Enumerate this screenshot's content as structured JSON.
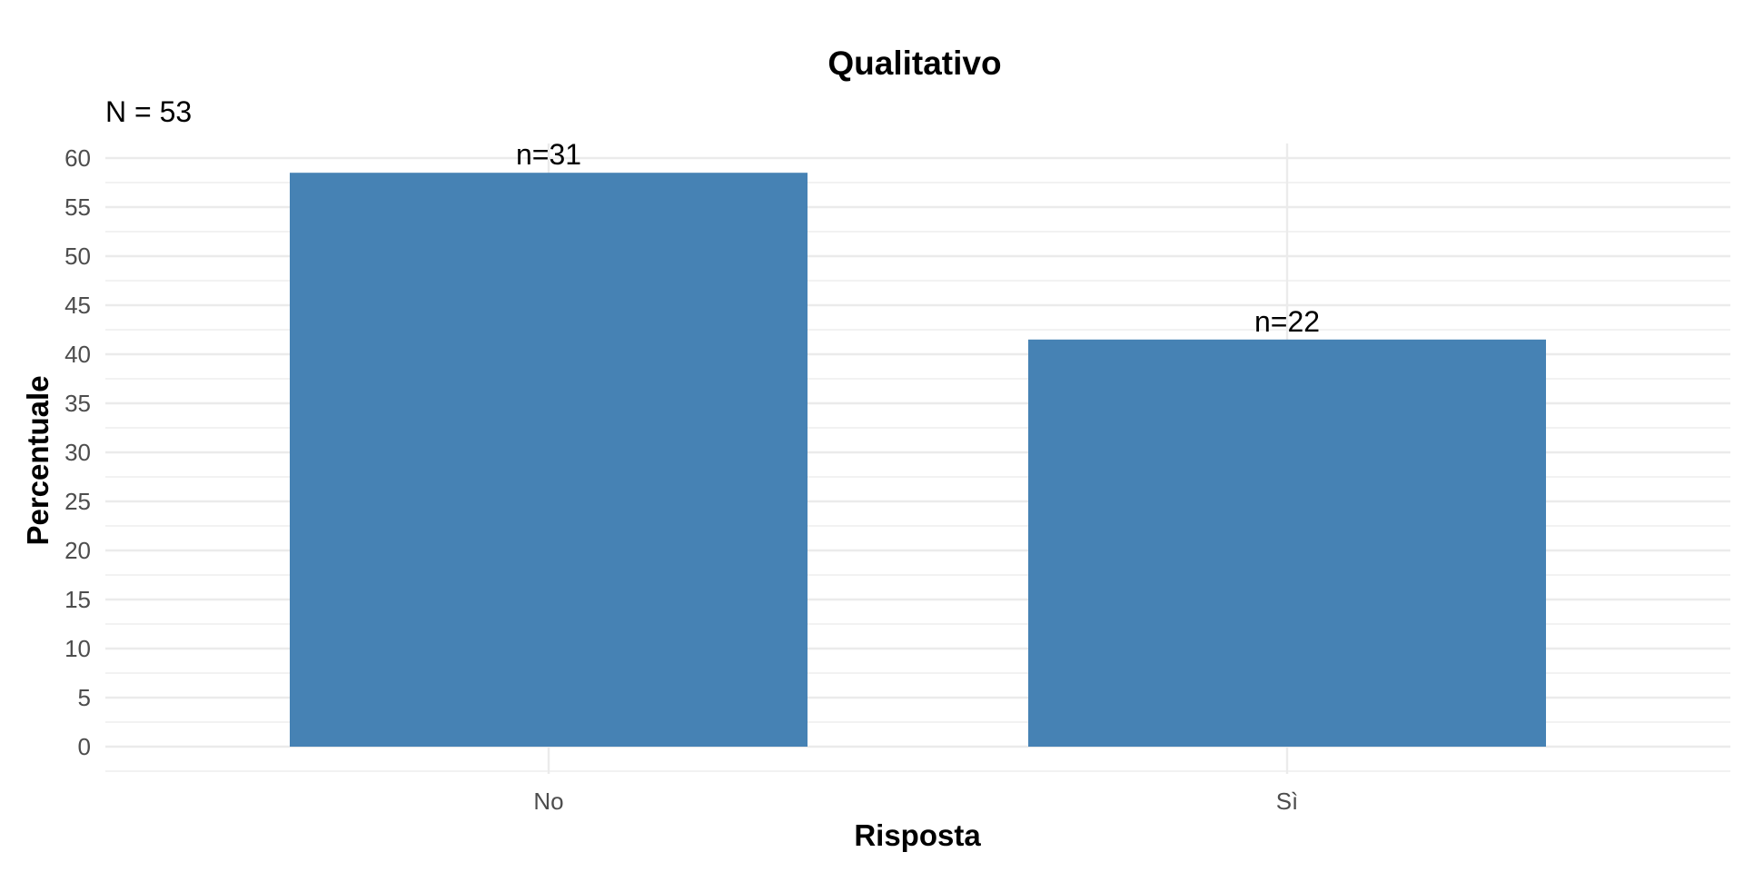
{
  "chart_data": {
    "type": "bar",
    "title": "Qualitativo",
    "subtitle": "N = 53",
    "xlabel": "Risposta",
    "ylabel": "Percentuale",
    "categories": [
      "No",
      "Sì"
    ],
    "values": [
      58.5,
      41.5
    ],
    "data_labels": [
      "n=31",
      "n=22"
    ],
    "ylim": [
      0,
      60
    ],
    "yticks": [
      0,
      5,
      10,
      15,
      20,
      25,
      30,
      35,
      40,
      45,
      50,
      55,
      60
    ],
    "grid": true,
    "legend": "none",
    "colors": {
      "bar": "#4682B4",
      "grid": "#ebebeb",
      "tick_text": "#4d4d4d"
    }
  }
}
